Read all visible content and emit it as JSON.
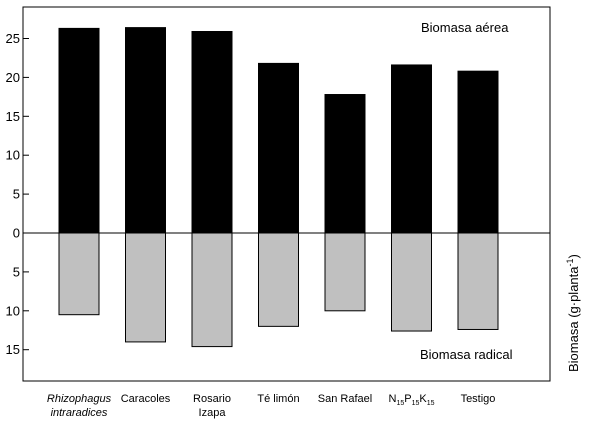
{
  "chart_data": {
    "type": "bar",
    "title": "",
    "xlabel": "",
    "ylabel_main": "Biomasa (g·planta",
    "ylabel_sup": "-1",
    "ylabel_close": ")",
    "ylim": [
      -19,
      27
    ],
    "grid": false,
    "baseline": 0,
    "ticks": [
      {
        "value": 25,
        "label": "25"
      },
      {
        "value": 20,
        "label": "20"
      },
      {
        "value": 15,
        "label": "15"
      },
      {
        "value": 10,
        "label": "10"
      },
      {
        "value": 5,
        "label": "5"
      },
      {
        "value": 0,
        "label": "0"
      },
      {
        "value": -5,
        "label": "5"
      },
      {
        "value": -10,
        "label": "10"
      },
      {
        "value": -15,
        "label": "15"
      }
    ],
    "categories": [
      {
        "lines": [
          "Rhizophagus",
          "intraradices"
        ],
        "italic": true
      },
      {
        "lines": [
          "Caracoles"
        ]
      },
      {
        "lines": [
          "Rosario",
          "Izapa"
        ]
      },
      {
        "lines": [
          "Té limón"
        ]
      },
      {
        "lines": [
          "San Rafael"
        ]
      },
      {
        "parts": [
          {
            "t": "N"
          },
          {
            "t": "15",
            "sub": true
          },
          {
            "t": "P"
          },
          {
            "t": "15",
            "sub": true
          },
          {
            "t": "K"
          },
          {
            "t": "15",
            "sub": true
          }
        ]
      },
      {
        "lines": [
          "Testigo"
        ]
      }
    ],
    "series": [
      {
        "name": "Biomasa aérea",
        "color": "#000000",
        "values": [
          26.3,
          26.4,
          25.9,
          21.8,
          17.8,
          21.6,
          20.8
        ]
      },
      {
        "name": "Biomasa radical",
        "color": "#c0c0c0",
        "values": [
          -10.5,
          -14.0,
          -14.6,
          -12.0,
          -10.0,
          -12.6,
          -12.4
        ]
      }
    ],
    "annotations": {
      "top": "Biomasa aérea",
      "bottom": "Biomasa radical"
    }
  }
}
